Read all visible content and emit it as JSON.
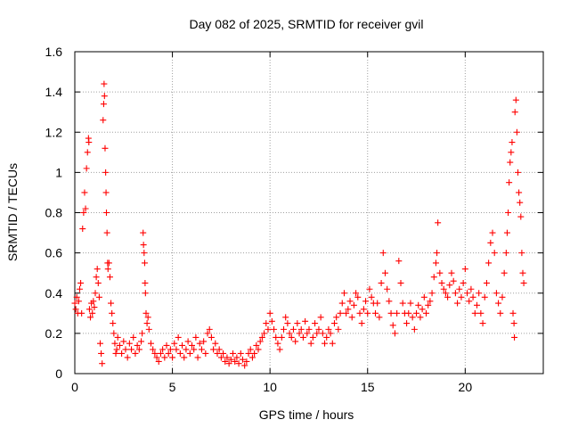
{
  "chart_data": {
    "type": "scatter",
    "title": "Day 082 of 2025, SRMTID for receiver gvil",
    "xlabel": "GPS time / hours",
    "ylabel": "SRMTID / TECUs",
    "xlim": [
      0,
      24
    ],
    "ylim": [
      0,
      1.6
    ],
    "xticks": [
      0,
      5,
      10,
      15,
      20
    ],
    "xtick_labels": [
      "0",
      "5",
      "10",
      "15",
      "20"
    ],
    "yticks": [
      0,
      0.2,
      0.4,
      0.6,
      0.8,
      1.0,
      1.2,
      1.4,
      1.6
    ],
    "ytick_labels": [
      "0",
      "0.2",
      "0.4",
      "0.6",
      "0.8",
      "1",
      "1.2",
      "1.4",
      "1.6"
    ],
    "grid": true,
    "marker": "+",
    "color": "#ff0000",
    "series": [
      {
        "name": "SRMTID",
        "points": [
          [
            0.0,
            0.35
          ],
          [
            0.05,
            0.32
          ],
          [
            0.1,
            0.38
          ],
          [
            0.15,
            0.3
          ],
          [
            0.2,
            0.36
          ],
          [
            0.25,
            0.42
          ],
          [
            0.3,
            0.45
          ],
          [
            0.35,
            0.3
          ],
          [
            0.4,
            0.72
          ],
          [
            0.45,
            0.8
          ],
          [
            0.5,
            0.9
          ],
          [
            0.55,
            0.82
          ],
          [
            0.6,
            1.02
          ],
          [
            0.65,
            1.1
          ],
          [
            0.7,
            1.17
          ],
          [
            0.72,
            1.15
          ],
          [
            0.75,
            0.32
          ],
          [
            0.8,
            0.28
          ],
          [
            0.85,
            0.35
          ],
          [
            0.9,
            0.3
          ],
          [
            0.95,
            0.36
          ],
          [
            1.0,
            0.33
          ],
          [
            1.05,
            0.4
          ],
          [
            1.1,
            0.48
          ],
          [
            1.15,
            0.52
          ],
          [
            1.2,
            0.45
          ],
          [
            1.25,
            0.38
          ],
          [
            1.3,
            0.15
          ],
          [
            1.35,
            0.1
          ],
          [
            1.4,
            0.05
          ],
          [
            1.45,
            1.26
          ],
          [
            1.48,
            1.34
          ],
          [
            1.5,
            1.44
          ],
          [
            1.52,
            1.38
          ],
          [
            1.55,
            1.12
          ],
          [
            1.58,
            1.0
          ],
          [
            1.6,
            0.9
          ],
          [
            1.62,
            0.8
          ],
          [
            1.65,
            0.7
          ],
          [
            1.68,
            0.55
          ],
          [
            1.7,
            0.52
          ],
          [
            1.75,
            0.55
          ],
          [
            1.8,
            0.48
          ],
          [
            1.85,
            0.35
          ],
          [
            1.9,
            0.3
          ],
          [
            1.95,
            0.25
          ],
          [
            2.0,
            0.2
          ],
          [
            2.05,
            0.15
          ],
          [
            2.1,
            0.1
          ],
          [
            2.15,
            0.12
          ],
          [
            2.2,
            0.18
          ],
          [
            2.3,
            0.14
          ],
          [
            2.4,
            0.1
          ],
          [
            2.5,
            0.16
          ],
          [
            2.6,
            0.12
          ],
          [
            2.7,
            0.08
          ],
          [
            2.8,
            0.15
          ],
          [
            2.9,
            0.12
          ],
          [
            3.0,
            0.18
          ],
          [
            3.1,
            0.1
          ],
          [
            3.2,
            0.14
          ],
          [
            3.3,
            0.12
          ],
          [
            3.4,
            0.16
          ],
          [
            3.45,
            0.2
          ],
          [
            3.5,
            0.7
          ],
          [
            3.52,
            0.64
          ],
          [
            3.55,
            0.6
          ],
          [
            3.58,
            0.55
          ],
          [
            3.6,
            0.45
          ],
          [
            3.62,
            0.4
          ],
          [
            3.65,
            0.3
          ],
          [
            3.7,
            0.25
          ],
          [
            3.75,
            0.28
          ],
          [
            3.8,
            0.22
          ],
          [
            3.9,
            0.15
          ],
          [
            4.0,
            0.12
          ],
          [
            4.1,
            0.1
          ],
          [
            4.2,
            0.08
          ],
          [
            4.3,
            0.06
          ],
          [
            4.4,
            0.1
          ],
          [
            4.5,
            0.12
          ],
          [
            4.6,
            0.08
          ],
          [
            4.7,
            0.14
          ],
          [
            4.8,
            0.1
          ],
          [
            4.9,
            0.12
          ],
          [
            5.0,
            0.08
          ],
          [
            5.1,
            0.15
          ],
          [
            5.2,
            0.12
          ],
          [
            5.3,
            0.18
          ],
          [
            5.4,
            0.1
          ],
          [
            5.5,
            0.14
          ],
          [
            5.6,
            0.08
          ],
          [
            5.7,
            0.12
          ],
          [
            5.8,
            0.16
          ],
          [
            5.9,
            0.1
          ],
          [
            6.0,
            0.14
          ],
          [
            6.1,
            0.12
          ],
          [
            6.2,
            0.18
          ],
          [
            6.3,
            0.08
          ],
          [
            6.4,
            0.15
          ],
          [
            6.5,
            0.12
          ],
          [
            6.6,
            0.16
          ],
          [
            6.7,
            0.1
          ],
          [
            6.8,
            0.2
          ],
          [
            6.9,
            0.22
          ],
          [
            7.0,
            0.18
          ],
          [
            7.1,
            0.12
          ],
          [
            7.2,
            0.15
          ],
          [
            7.3,
            0.1
          ],
          [
            7.4,
            0.12
          ],
          [
            7.5,
            0.08
          ],
          [
            7.6,
            0.1
          ],
          [
            7.7,
            0.06
          ],
          [
            7.8,
            0.08
          ],
          [
            7.9,
            0.05
          ],
          [
            8.0,
            0.07
          ],
          [
            8.1,
            0.1
          ],
          [
            8.2,
            0.06
          ],
          [
            8.3,
            0.08
          ],
          [
            8.4,
            0.05
          ],
          [
            8.5,
            0.1
          ],
          [
            8.6,
            0.07
          ],
          [
            8.7,
            0.04
          ],
          [
            8.8,
            0.06
          ],
          [
            8.9,
            0.1
          ],
          [
            9.0,
            0.12
          ],
          [
            9.1,
            0.08
          ],
          [
            9.2,
            0.1
          ],
          [
            9.3,
            0.14
          ],
          [
            9.4,
            0.12
          ],
          [
            9.5,
            0.16
          ],
          [
            9.6,
            0.18
          ],
          [
            9.7,
            0.2
          ],
          [
            9.8,
            0.25
          ],
          [
            9.9,
            0.22
          ],
          [
            10.0,
            0.3
          ],
          [
            10.1,
            0.26
          ],
          [
            10.2,
            0.22
          ],
          [
            10.3,
            0.18
          ],
          [
            10.4,
            0.15
          ],
          [
            10.5,
            0.12
          ],
          [
            10.6,
            0.18
          ],
          [
            10.7,
            0.22
          ],
          [
            10.8,
            0.28
          ],
          [
            10.9,
            0.25
          ],
          [
            11.0,
            0.2
          ],
          [
            11.1,
            0.18
          ],
          [
            11.2,
            0.22
          ],
          [
            11.3,
            0.16
          ],
          [
            11.4,
            0.25
          ],
          [
            11.5,
            0.2
          ],
          [
            11.6,
            0.22
          ],
          [
            11.7,
            0.18
          ],
          [
            11.8,
            0.26
          ],
          [
            11.9,
            0.2
          ],
          [
            12.0,
            0.22
          ],
          [
            12.1,
            0.15
          ],
          [
            12.2,
            0.18
          ],
          [
            12.3,
            0.25
          ],
          [
            12.4,
            0.2
          ],
          [
            12.5,
            0.22
          ],
          [
            12.6,
            0.28
          ],
          [
            12.7,
            0.2
          ],
          [
            12.8,
            0.15
          ],
          [
            12.9,
            0.18
          ],
          [
            13.0,
            0.22
          ],
          [
            13.1,
            0.2
          ],
          [
            13.2,
            0.15
          ],
          [
            13.3,
            0.25
          ],
          [
            13.4,
            0.28
          ],
          [
            13.5,
            0.22
          ],
          [
            13.6,
            0.3
          ],
          [
            13.7,
            0.35
          ],
          [
            13.8,
            0.4
          ],
          [
            13.9,
            0.3
          ],
          [
            14.0,
            0.32
          ],
          [
            14.1,
            0.36
          ],
          [
            14.2,
            0.28
          ],
          [
            14.3,
            0.34
          ],
          [
            14.4,
            0.4
          ],
          [
            14.5,
            0.38
          ],
          [
            14.6,
            0.3
          ],
          [
            14.7,
            0.25
          ],
          [
            14.8,
            0.32
          ],
          [
            14.9,
            0.36
          ],
          [
            15.0,
            0.3
          ],
          [
            15.1,
            0.42
          ],
          [
            15.2,
            0.38
          ],
          [
            15.3,
            0.35
          ],
          [
            15.4,
            0.3
          ],
          [
            15.5,
            0.35
          ],
          [
            15.6,
            0.28
          ],
          [
            15.7,
            0.45
          ],
          [
            15.8,
            0.6
          ],
          [
            15.9,
            0.5
          ],
          [
            16.0,
            0.42
          ],
          [
            16.1,
            0.36
          ],
          [
            16.2,
            0.3
          ],
          [
            16.3,
            0.24
          ],
          [
            16.4,
            0.2
          ],
          [
            16.5,
            0.3
          ],
          [
            16.6,
            0.56
          ],
          [
            16.7,
            0.45
          ],
          [
            16.8,
            0.35
          ],
          [
            16.9,
            0.3
          ],
          [
            17.0,
            0.25
          ],
          [
            17.1,
            0.3
          ],
          [
            17.2,
            0.35
          ],
          [
            17.3,
            0.28
          ],
          [
            17.4,
            0.22
          ],
          [
            17.5,
            0.3
          ],
          [
            17.6,
            0.34
          ],
          [
            17.7,
            0.28
          ],
          [
            17.8,
            0.32
          ],
          [
            17.9,
            0.38
          ],
          [
            18.0,
            0.3
          ],
          [
            18.1,
            0.34
          ],
          [
            18.2,
            0.36
          ],
          [
            18.3,
            0.4
          ],
          [
            18.4,
            0.48
          ],
          [
            18.5,
            0.55
          ],
          [
            18.55,
            0.6
          ],
          [
            18.6,
            0.75
          ],
          [
            18.7,
            0.5
          ],
          [
            18.8,
            0.45
          ],
          [
            18.9,
            0.42
          ],
          [
            19.0,
            0.4
          ],
          [
            19.1,
            0.38
          ],
          [
            19.2,
            0.44
          ],
          [
            19.3,
            0.5
          ],
          [
            19.4,
            0.46
          ],
          [
            19.5,
            0.4
          ],
          [
            19.6,
            0.35
          ],
          [
            19.7,
            0.42
          ],
          [
            19.8,
            0.38
          ],
          [
            19.9,
            0.45
          ],
          [
            20.0,
            0.52
          ],
          [
            20.1,
            0.4
          ],
          [
            20.2,
            0.36
          ],
          [
            20.3,
            0.42
          ],
          [
            20.4,
            0.38
          ],
          [
            20.5,
            0.3
          ],
          [
            20.6,
            0.34
          ],
          [
            20.7,
            0.4
          ],
          [
            20.8,
            0.3
          ],
          [
            20.9,
            0.25
          ],
          [
            21.0,
            0.38
          ],
          [
            21.1,
            0.45
          ],
          [
            21.2,
            0.55
          ],
          [
            21.3,
            0.65
          ],
          [
            21.4,
            0.7
          ],
          [
            21.5,
            0.6
          ],
          [
            21.6,
            0.4
          ],
          [
            21.7,
            0.35
          ],
          [
            21.8,
            0.3
          ],
          [
            21.9,
            0.38
          ],
          [
            22.0,
            0.5
          ],
          [
            22.1,
            0.6
          ],
          [
            22.15,
            0.7
          ],
          [
            22.2,
            0.8
          ],
          [
            22.25,
            0.95
          ],
          [
            22.3,
            1.05
          ],
          [
            22.35,
            1.1
          ],
          [
            22.4,
            1.15
          ],
          [
            22.45,
            0.3
          ],
          [
            22.5,
            0.25
          ],
          [
            22.52,
            0.18
          ],
          [
            22.55,
            1.3
          ],
          [
            22.6,
            1.36
          ],
          [
            22.65,
            1.2
          ],
          [
            22.7,
            1.0
          ],
          [
            22.75,
            0.9
          ],
          [
            22.8,
            0.85
          ],
          [
            22.85,
            0.78
          ],
          [
            22.9,
            0.6
          ],
          [
            22.95,
            0.5
          ],
          [
            23.0,
            0.45
          ]
        ]
      }
    ]
  }
}
